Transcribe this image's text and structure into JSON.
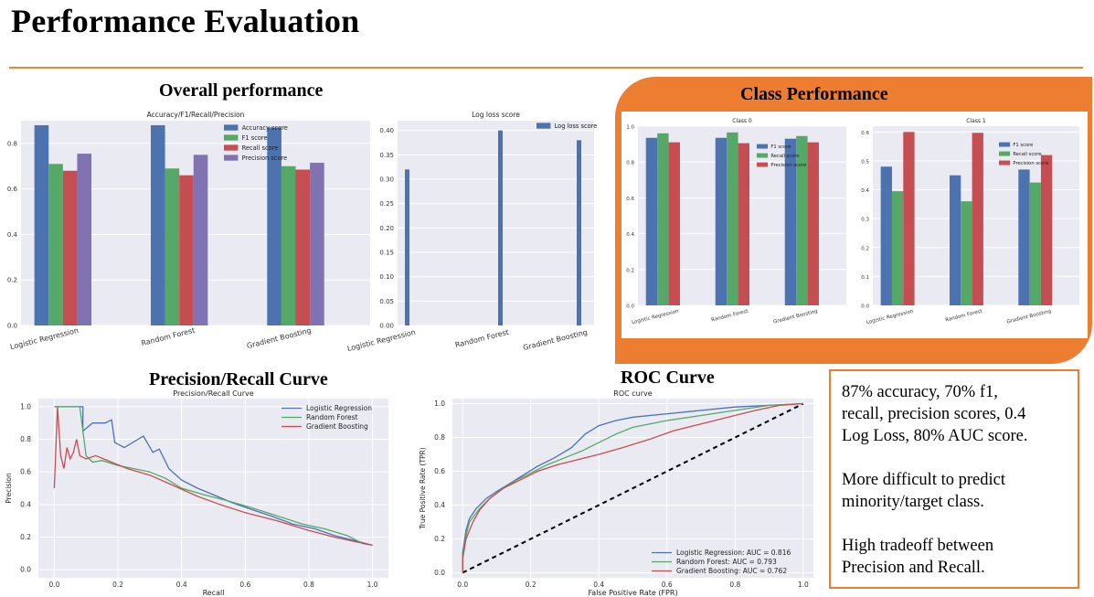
{
  "page": {
    "title": "Performance Evaluation",
    "sections": {
      "overall": "Overall performance",
      "class_perf": "Class Performance",
      "pr": "Precision/Recall Curve",
      "roc": "ROC Curve"
    },
    "accent_color": "#ed7d31"
  },
  "summary": {
    "lines": [
      "87% accuracy, 70% f1,",
      "recall, precision scores, 0.4",
      "Log Loss, 80% AUC score.",
      "",
      "More difficult to predict",
      "minority/target class.",
      "",
      "High tradeoff between",
      "Precision and Recall."
    ]
  },
  "chart_data": [
    {
      "id": "overall",
      "type": "bar",
      "title": "Accuracy/F1/Recall/Precision",
      "categories": [
        "Logistic Regression",
        "Random Forest",
        "Gradient Boosting"
      ],
      "series": [
        {
          "name": "Accuracy score",
          "values": [
            0.88,
            0.88,
            0.87
          ],
          "color": "#4c72b0"
        },
        {
          "name": "F1 score",
          "values": [
            0.71,
            0.69,
            0.7
          ],
          "color": "#55a868"
        },
        {
          "name": "Recall score",
          "values": [
            0.68,
            0.66,
            0.685
          ],
          "color": "#c44e52"
        },
        {
          "name": "Precision score",
          "values": [
            0.755,
            0.75,
            0.715
          ],
          "color": "#8172b2"
        }
      ],
      "ylim": [
        0,
        0.9
      ],
      "yticks": [
        0.0,
        0.2,
        0.4,
        0.6,
        0.8
      ],
      "ytick_labels": [
        "0.0",
        "0.2",
        "0.4",
        "0.6",
        "0.8"
      ],
      "legend": "top-right",
      "grid": true
    },
    {
      "id": "logloss",
      "type": "bar",
      "title": "Log loss score",
      "categories": [
        "Logistic Regression",
        "Random Forest",
        "Gradient Boosting"
      ],
      "series": [
        {
          "name": "Log loss score",
          "values": [
            0.32,
            0.4,
            0.38
          ],
          "color": "#4c72b0"
        }
      ],
      "ylim": [
        0,
        0.42
      ],
      "yticks": [
        0.0,
        0.05,
        0.1,
        0.15,
        0.2,
        0.25,
        0.3,
        0.35,
        0.4
      ],
      "ytick_labels": [
        "0.00",
        "0.05",
        "0.10",
        "0.15",
        "0.20",
        "0.25",
        "0.30",
        "0.35",
        "0.40"
      ],
      "legend": "top-right",
      "grid": true
    },
    {
      "id": "class0",
      "type": "bar",
      "title": "Class 0",
      "categories": [
        "Logistic Regression",
        "Random Forest",
        "Gradient Boosting"
      ],
      "series": [
        {
          "name": "F1 score",
          "values": [
            0.935,
            0.935,
            0.93
          ],
          "color": "#4c72b0"
        },
        {
          "name": "Recall score",
          "values": [
            0.96,
            0.965,
            0.945
          ],
          "color": "#55a868"
        },
        {
          "name": "Precision score",
          "values": [
            0.91,
            0.905,
            0.91
          ],
          "color": "#c44e52"
        }
      ],
      "ylim": [
        0,
        1.0
      ],
      "yticks": [
        0.0,
        0.2,
        0.4,
        0.6,
        0.8,
        1.0
      ],
      "ytick_labels": [
        "0.0",
        "0.2",
        "0.4",
        "0.6",
        "0.8",
        "1.0"
      ],
      "legend": "top-right",
      "grid": true
    },
    {
      "id": "class1",
      "type": "bar",
      "title": "Class 1",
      "categories": [
        "Logistic Regression",
        "Random Forest",
        "Gradient Boosting"
      ],
      "series": [
        {
          "name": "F1 score",
          "values": [
            0.48,
            0.45,
            0.47
          ],
          "color": "#4c72b0"
        },
        {
          "name": "Recall score",
          "values": [
            0.395,
            0.36,
            0.425
          ],
          "color": "#55a868"
        },
        {
          "name": "Precision score",
          "values": [
            0.6,
            0.597,
            0.52
          ],
          "color": "#c44e52"
        }
      ],
      "ylim": [
        0,
        0.62
      ],
      "yticks": [
        0.0,
        0.1,
        0.2,
        0.3,
        0.4,
        0.5,
        0.6
      ],
      "ytick_labels": [
        "0.0",
        "0.1",
        "0.2",
        "0.3",
        "0.4",
        "0.5",
        "0.6"
      ],
      "legend": "top-right",
      "grid": true
    },
    {
      "id": "pr",
      "type": "line",
      "title": "Precision/Recall Curve",
      "xlabel": "Recall",
      "ylabel": "Precision",
      "xlim": [
        -0.05,
        1.05
      ],
      "ylim": [
        -0.05,
        1.05
      ],
      "xticks": [
        0.0,
        0.2,
        0.4,
        0.6,
        0.8,
        1.0
      ],
      "xtick_labels": [
        "0.0",
        "0.2",
        "0.4",
        "0.6",
        "0.8",
        "1.0"
      ],
      "yticks": [
        0.0,
        0.2,
        0.4,
        0.6,
        0.8,
        1.0
      ],
      "ytick_labels": [
        "0.0",
        "0.2",
        "0.4",
        "0.6",
        "0.8",
        "1.0"
      ],
      "legend": "top-right",
      "grid": true,
      "series": [
        {
          "name": "Logistic Regression",
          "color": "#4c72b0",
          "x": [
            0.0,
            0.01,
            0.09,
            0.09,
            0.12,
            0.16,
            0.18,
            0.19,
            0.22,
            0.28,
            0.31,
            0.33,
            0.36,
            0.4,
            0.45,
            0.5,
            0.56,
            0.62,
            0.68,
            0.75,
            0.82,
            0.88,
            0.94,
            0.98,
            1.0
          ],
          "y": [
            1.0,
            1.0,
            1.0,
            0.85,
            0.9,
            0.9,
            0.92,
            0.78,
            0.75,
            0.82,
            0.72,
            0.74,
            0.62,
            0.55,
            0.5,
            0.46,
            0.41,
            0.37,
            0.33,
            0.28,
            0.25,
            0.21,
            0.18,
            0.16,
            0.15
          ]
        },
        {
          "name": "Random Forest",
          "color": "#55a868",
          "x": [
            0.0,
            0.01,
            0.08,
            0.1,
            0.12,
            0.15,
            0.2,
            0.25,
            0.3,
            0.35,
            0.4,
            0.47,
            0.55,
            0.62,
            0.7,
            0.78,
            0.85,
            0.92,
            0.97,
            1.0
          ],
          "y": [
            1.0,
            1.0,
            1.0,
            0.7,
            0.66,
            0.67,
            0.64,
            0.62,
            0.6,
            0.56,
            0.5,
            0.46,
            0.42,
            0.38,
            0.33,
            0.28,
            0.25,
            0.21,
            0.16,
            0.15
          ]
        },
        {
          "name": "Gradient Boosting",
          "color": "#c44e52",
          "x": [
            0.0,
            0.01,
            0.02,
            0.03,
            0.04,
            0.05,
            0.06,
            0.07,
            0.08,
            0.1,
            0.13,
            0.18,
            0.23,
            0.3,
            0.37,
            0.45,
            0.52,
            0.6,
            0.7,
            0.8,
            0.88,
            0.95,
            1.0
          ],
          "y": [
            0.5,
            1.0,
            0.7,
            0.62,
            0.75,
            0.68,
            0.72,
            0.8,
            0.7,
            0.68,
            0.7,
            0.66,
            0.62,
            0.58,
            0.52,
            0.45,
            0.4,
            0.35,
            0.3,
            0.24,
            0.2,
            0.17,
            0.15
          ]
        }
      ]
    },
    {
      "id": "roc",
      "type": "line",
      "title": "ROC curve",
      "xlabel": "False Positive Rate (FPR)",
      "ylabel": "True Positive Rate (TPR)",
      "xlim": [
        -0.03,
        1.03
      ],
      "ylim": [
        -0.03,
        1.03
      ],
      "xticks": [
        0.0,
        0.2,
        0.4,
        0.6,
        0.8,
        1.0
      ],
      "xtick_labels": [
        "0.0",
        "0.2",
        "0.4",
        "0.6",
        "0.8",
        "1.0"
      ],
      "yticks": [
        0.0,
        0.2,
        0.4,
        0.6,
        0.8,
        1.0
      ],
      "ytick_labels": [
        "0.0",
        "0.2",
        "0.4",
        "0.6",
        "0.8",
        "1.0"
      ],
      "legend": "lower-right",
      "grid": true,
      "series": [
        {
          "name": "Logistic Regression: AUC = 0.816",
          "color": "#4c72b0",
          "x": [
            0.0,
            0.0,
            0.01,
            0.02,
            0.04,
            0.07,
            0.1,
            0.14,
            0.18,
            0.22,
            0.27,
            0.32,
            0.36,
            0.4,
            0.45,
            0.5,
            0.6,
            0.7,
            0.8,
            0.9,
            1.0
          ],
          "y": [
            0.0,
            0.12,
            0.25,
            0.32,
            0.38,
            0.44,
            0.48,
            0.53,
            0.58,
            0.63,
            0.68,
            0.74,
            0.82,
            0.87,
            0.9,
            0.92,
            0.94,
            0.96,
            0.98,
            0.99,
            1.0
          ]
        },
        {
          "name": "Random Forest: AUC = 0.793",
          "color": "#55a868",
          "x": [
            0.0,
            0.0,
            0.01,
            0.02,
            0.05,
            0.08,
            0.12,
            0.16,
            0.2,
            0.25,
            0.3,
            0.35,
            0.4,
            0.45,
            0.5,
            0.6,
            0.7,
            0.8,
            0.9,
            1.0
          ],
          "y": [
            0.0,
            0.1,
            0.22,
            0.3,
            0.38,
            0.44,
            0.5,
            0.55,
            0.59,
            0.64,
            0.68,
            0.72,
            0.77,
            0.82,
            0.86,
            0.9,
            0.93,
            0.96,
            0.99,
            1.0
          ]
        },
        {
          "name": "Gradient Boosting: AUC = 0.762",
          "color": "#c44e52",
          "x": [
            0.0,
            0.0,
            0.01,
            0.03,
            0.05,
            0.08,
            0.12,
            0.17,
            0.22,
            0.28,
            0.34,
            0.4,
            0.47,
            0.55,
            0.62,
            0.7,
            0.78,
            0.86,
            0.93,
            1.0
          ],
          "y": [
            0.0,
            0.08,
            0.2,
            0.3,
            0.37,
            0.44,
            0.5,
            0.55,
            0.6,
            0.64,
            0.67,
            0.7,
            0.74,
            0.79,
            0.84,
            0.88,
            0.92,
            0.96,
            0.99,
            1.0
          ]
        }
      ],
      "reference_line": {
        "x": [
          0,
          1
        ],
        "y": [
          0,
          1
        ],
        "style": "dashed",
        "color": "#000000"
      }
    }
  ]
}
